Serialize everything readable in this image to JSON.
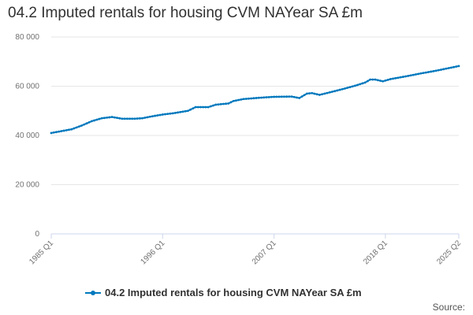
{
  "title": "04.2 Imputed rentals for housing CVM NAYear SA £m",
  "source_label": "Source:",
  "colors": {
    "series": "#0078bd",
    "grid": "#e6e6e6",
    "axis": "#ccd6eb",
    "text": "#323132"
  },
  "chart_data": {
    "type": "line",
    "title": "04.2 Imputed rentals for housing CVM NAYear SA £m",
    "xlabel": "",
    "ylabel": "",
    "ylim": [
      0,
      80000
    ],
    "y_ticks": [
      0,
      20000,
      40000,
      60000,
      80000
    ],
    "y_tick_labels": [
      "0",
      "20 000",
      "40 000",
      "60 000",
      "80 000"
    ],
    "x_ticks": [
      {
        "index": 0,
        "label": "1985 Q1"
      },
      {
        "index": 44,
        "label": "1996 Q1"
      },
      {
        "index": 88,
        "label": "2007 Q1"
      },
      {
        "index": 132,
        "label": "2018 Q1"
      },
      {
        "index": 161,
        "label": "2025 Q2"
      }
    ],
    "legend_position": "bottom",
    "start_period": "1985 Q1",
    "end_period": "2025 Q2",
    "series": [
      {
        "name": "04.2 Imputed rentals for housing CVM NAYear SA £m",
        "anchors": [
          {
            "index": 0,
            "value": 41000
          },
          {
            "index": 8,
            "value": 42500
          },
          {
            "index": 12,
            "value": 44000
          },
          {
            "index": 16,
            "value": 45800
          },
          {
            "index": 20,
            "value": 47000
          },
          {
            "index": 24,
            "value": 47500
          },
          {
            "index": 28,
            "value": 46800
          },
          {
            "index": 33,
            "value": 46800
          },
          {
            "index": 36,
            "value": 47000
          },
          {
            "index": 40,
            "value": 47800
          },
          {
            "index": 44,
            "value": 48500
          },
          {
            "index": 48,
            "value": 49000
          },
          {
            "index": 54,
            "value": 50000
          },
          {
            "index": 57,
            "value": 51500
          },
          {
            "index": 62,
            "value": 51500
          },
          {
            "index": 65,
            "value": 52500
          },
          {
            "index": 70,
            "value": 53000
          },
          {
            "index": 72,
            "value": 54000
          },
          {
            "index": 76,
            "value": 54800
          },
          {
            "index": 82,
            "value": 55300
          },
          {
            "index": 88,
            "value": 55700
          },
          {
            "index": 95,
            "value": 55800
          },
          {
            "index": 98,
            "value": 55200
          },
          {
            "index": 101,
            "value": 57000
          },
          {
            "index": 103,
            "value": 57200
          },
          {
            "index": 106,
            "value": 56500
          },
          {
            "index": 110,
            "value": 57500
          },
          {
            "index": 115,
            "value": 58800
          },
          {
            "index": 120,
            "value": 60200
          },
          {
            "index": 124,
            "value": 61500
          },
          {
            "index": 126,
            "value": 62700
          },
          {
            "index": 128,
            "value": 62700
          },
          {
            "index": 131,
            "value": 62000
          },
          {
            "index": 134,
            "value": 62900
          },
          {
            "index": 140,
            "value": 64000
          },
          {
            "index": 146,
            "value": 65200
          },
          {
            "index": 152,
            "value": 66300
          },
          {
            "index": 161,
            "value": 68200
          }
        ]
      }
    ]
  }
}
